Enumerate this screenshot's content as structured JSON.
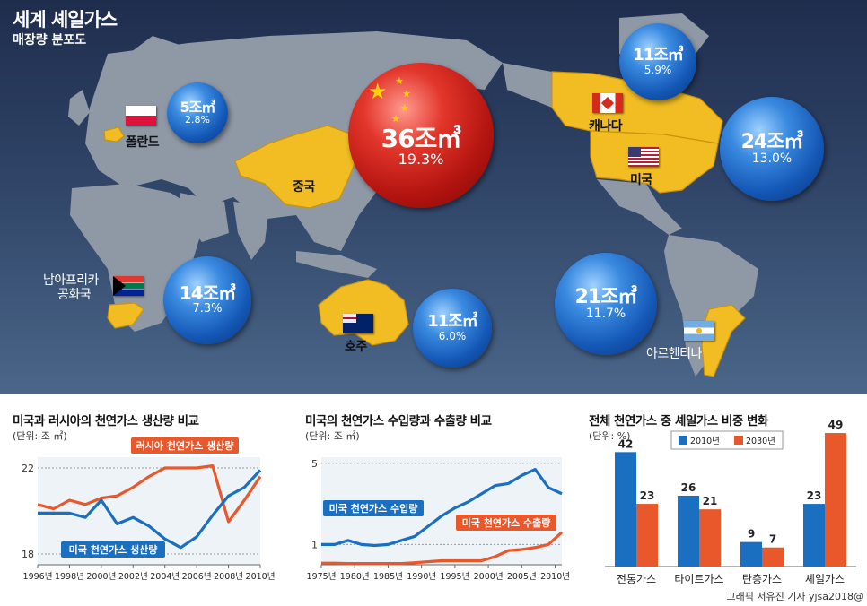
{
  "title": "세계 셰일가스",
  "subtitle": "매장량 분포도",
  "map": {
    "bubbles": [
      {
        "id": "poland",
        "value": "5조㎥",
        "pct": "2.8%"
      },
      {
        "id": "china",
        "value": "36조㎥",
        "pct": "19.3%"
      },
      {
        "id": "canada",
        "value": "11조㎥",
        "pct": "5.9%"
      },
      {
        "id": "usa",
        "value": "24조㎥",
        "pct": "13.0%"
      },
      {
        "id": "southafrica",
        "value": "14조㎥",
        "pct": "7.3%"
      },
      {
        "id": "australia",
        "value": "11조㎥",
        "pct": "6.0%"
      },
      {
        "id": "argentina",
        "value": "21조㎥",
        "pct": "11.7%"
      }
    ],
    "labels": {
      "poland": "폴란드",
      "china": "중국",
      "canada": "캐나다",
      "usa": "미국",
      "southafrica1": "남아프리카",
      "southafrica2": "공화국",
      "australia": "호주",
      "argentina": "아르헨티나"
    },
    "colors": {
      "highlight": "#f2bd23",
      "land": "#8f99a6",
      "bubble_blue": "#1457b5",
      "bubble_red": "#b3140f"
    }
  },
  "chart_data": [
    {
      "type": "line",
      "title": "미국과 러시아의 천연가스 생산량 비교",
      "unit": "(단위: 조 ㎥)",
      "x": [
        1996,
        1997,
        1998,
        1999,
        2000,
        2001,
        2002,
        2003,
        2004,
        2005,
        2006,
        2007,
        2008,
        2009,
        2010
      ],
      "x_ticks": [
        "1996년",
        "1998년",
        "2000년",
        "2002년",
        "2004년",
        "2006년",
        "2008년",
        "2010년"
      ],
      "y_ticks": [
        "18",
        "22"
      ],
      "ylim": [
        17.5,
        22.5
      ],
      "series": [
        {
          "name": "러시아 천연가스 생산량",
          "color": "#e8582a",
          "values": [
            20.3,
            20.1,
            20.5,
            20.3,
            20.6,
            20.7,
            21.1,
            21.6,
            22.0,
            22.0,
            22.0,
            22.1,
            19.5,
            20.5,
            21.6
          ]
        },
        {
          "name": "미국 천연가스 생산량",
          "color": "#1b6fc0",
          "values": [
            19.9,
            19.9,
            19.9,
            19.7,
            20.5,
            19.4,
            19.7,
            19.3,
            18.7,
            18.3,
            18.8,
            19.8,
            20.7,
            21.1,
            21.9
          ]
        }
      ]
    },
    {
      "type": "line",
      "title": "미국의 천연가스 수입량과 수출량 비교",
      "unit": "(단위: 조 ㎥)",
      "x": [
        1975,
        1977,
        1979,
        1981,
        1983,
        1985,
        1987,
        1989,
        1991,
        1993,
        1995,
        1997,
        1999,
        2001,
        2003,
        2005,
        2007,
        2009,
        2011
      ],
      "x_ticks": [
        "1975년",
        "1980년",
        "1985년",
        "1990년",
        "1995년",
        "2000년",
        "2005년",
        "2010년"
      ],
      "y_ticks": [
        "1",
        "5"
      ],
      "ylim": [
        0,
        5.3
      ],
      "series": [
        {
          "name": "미국 천연가스 수입량",
          "color": "#1b6fc0",
          "values": [
            1.0,
            1.0,
            1.2,
            1.0,
            0.95,
            1.0,
            1.2,
            1.4,
            1.9,
            2.4,
            2.8,
            3.1,
            3.5,
            3.9,
            4.0,
            4.4,
            4.7,
            3.8,
            3.5
          ]
        },
        {
          "name": "미국 천연가스 수출량",
          "color": "#e8582a",
          "values": [
            0.08,
            0.08,
            0.06,
            0.06,
            0.06,
            0.06,
            0.06,
            0.1,
            0.15,
            0.2,
            0.2,
            0.2,
            0.2,
            0.4,
            0.7,
            0.75,
            0.85,
            1.0,
            1.6
          ]
        }
      ]
    },
    {
      "type": "bar",
      "title": "전체 천연가스 중 셰일가스 비중 변화",
      "unit": "(단위: %)",
      "categories": [
        "전통가스",
        "타이트가스",
        "탄층가스",
        "셰일가스"
      ],
      "ylim": [
        0,
        50
      ],
      "series": [
        {
          "name": "2010년",
          "color": "#1b6fc0",
          "values": [
            42,
            26,
            9,
            23
          ]
        },
        {
          "name": "2030년",
          "color": "#e8582a",
          "values": [
            23,
            21,
            7,
            49
          ]
        }
      ]
    }
  ],
  "credit": "그래픽 서유진 기자 yjsa2018@"
}
